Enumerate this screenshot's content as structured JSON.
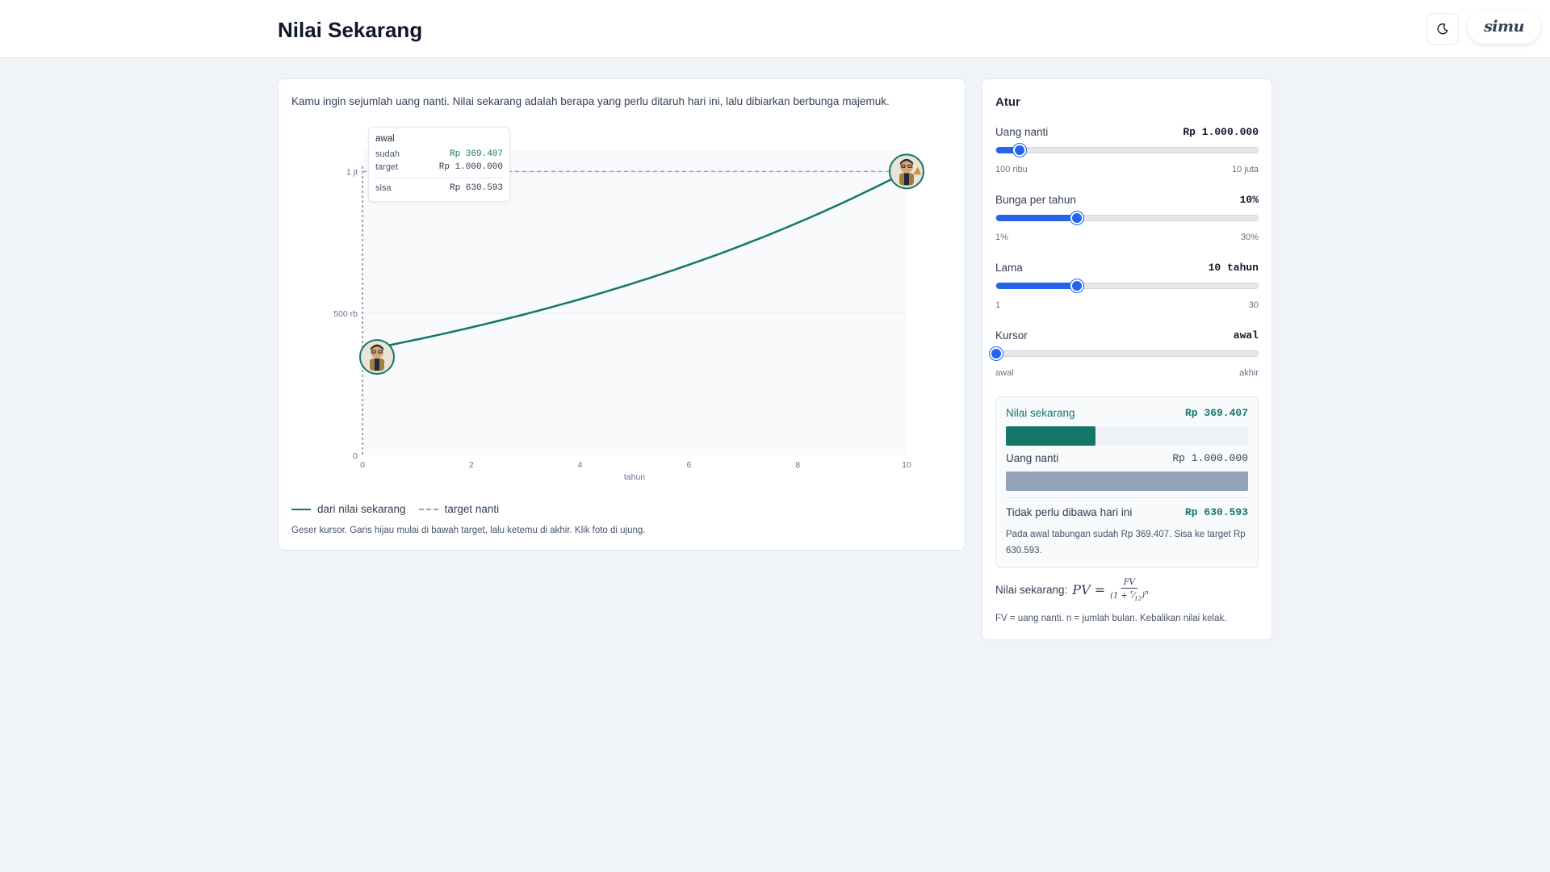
{
  "app": {
    "title": "Nilai Sekarang",
    "logo_text": "simu"
  },
  "intro": "Kamu ingin sejumlah uang nanti. Nilai sekarang adalah berapa yang perlu ditaruh hari ini, lalu dibiarkan berbunga majemuk.",
  "chart_data": {
    "type": "line",
    "title": "",
    "xlabel": "tahun",
    "ylabel": "",
    "xlim": [
      0,
      10
    ],
    "ylim": [
      0,
      1075000
    ],
    "x_ticks": [
      "0",
      "2",
      "4",
      "6",
      "8",
      "10"
    ],
    "x_tick_values": [
      0,
      2,
      4,
      6,
      8,
      10
    ],
    "y_ticks": [
      "0",
      "500 rb",
      "1 jt"
    ],
    "y_tick_values": [
      0,
      500000,
      1000000
    ],
    "grid": true,
    "legend_position": "bottom-left",
    "series": [
      {
        "name": "dari nilai sekarang",
        "color": "#15766a",
        "style": "solid",
        "x": [
          0,
          1,
          2,
          3,
          4,
          5,
          6,
          7,
          8,
          9,
          10
        ],
        "values": [
          369407,
          408230,
          451130,
          498532,
          550890,
          608759,
          672721,
          743410,
          821507,
          907850,
          1000000
        ]
      },
      {
        "name": "target nanti",
        "color": "#94a3b8",
        "style": "dashed",
        "x": [
          0,
          10
        ],
        "values": [
          1000000,
          1000000
        ]
      }
    ],
    "cursor_x": 0
  },
  "tooltip": {
    "title": "awal",
    "sudah_label": "sudah",
    "sudah_value": "Rp 369.407",
    "target_label": "target",
    "target_value": "Rp 1.000.000",
    "sisa_label": "sisa",
    "sisa_value": "Rp 630.593"
  },
  "legend": {
    "solid_label": "dari nilai sekarang",
    "dashed_label": "target nanti"
  },
  "chart_note": "Geser kursor. Garis hijau mulai di bawah target, lalu ketemu di akhir. Klik foto di ujung.",
  "settings": {
    "title": "Atur",
    "sliders": [
      {
        "label": "Uang nanti",
        "value": "Rp 1.000.000",
        "min_label": "100 ribu",
        "max_label": "10 juta",
        "fraction": 0.09
      },
      {
        "label": "Bunga per tahun",
        "value": "10%",
        "min_label": "1%",
        "max_label": "30%",
        "fraction": 0.31
      },
      {
        "label": "Lama",
        "value": "10 tahun",
        "min_label": "1",
        "max_label": "30",
        "fraction": 0.31
      },
      {
        "label": "Kursor",
        "value": "awal",
        "min_label": "awal",
        "max_label": "akhir",
        "fraction": 0.0
      }
    ]
  },
  "result": {
    "pv_label": "Nilai sekarang",
    "pv_value": "Rp 369.407",
    "pv_fraction": 0.369407,
    "fv_label": "Uang nanti",
    "fv_value": "Rp 1.000.000",
    "fv_fraction": 1.0,
    "diff_label": "Tidak perlu dibawa hari ini",
    "diff_value": "Rp 630.593",
    "description": "Pada awal tabungan sudah Rp 369.407. Sisa ke target Rp 630.593.",
    "pv_color": "#15766a",
    "fv_color": "#94a3b8"
  },
  "formula": {
    "label": "Nilai sekarang:",
    "note": "FV = uang nanti. n = jumlah bulan. Kebalikan nilai kelak."
  },
  "colors": {
    "accent": "#2563eb",
    "line": "#15766a",
    "target": "#94a3b8",
    "background": "#f0f3f7"
  }
}
